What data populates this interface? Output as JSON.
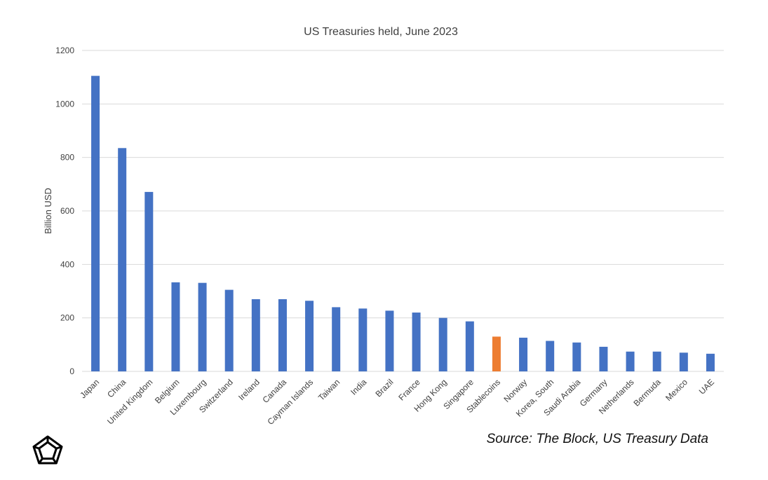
{
  "chart_data": {
    "type": "bar",
    "title": "US Treasuries held, June 2023",
    "xlabel": "",
    "ylabel": "Billion USD",
    "ylim": [
      0,
      1200
    ],
    "yticks": [
      0,
      200,
      400,
      600,
      800,
      1000,
      1200
    ],
    "grid": true,
    "legend": "none",
    "categories": [
      "Japan",
      "China",
      "United Kingdom",
      "Belgium",
      "Luxembourg",
      "Switzerland",
      "Ireland",
      "Canada",
      "Cayman Islands",
      "Taiwan",
      "India",
      "Brazil",
      "France",
      "Hong Kong",
      "Singapore",
      "Stablecoins",
      "Norway",
      "Korea, South",
      "Saudi Arabia",
      "Germany",
      "Netherlands",
      "Bermuda",
      "Mexico",
      "UAE"
    ],
    "values": [
      1105,
      835,
      671,
      333,
      331,
      305,
      270,
      270,
      264,
      240,
      235,
      227,
      220,
      200,
      187,
      130,
      126,
      114,
      108,
      92,
      74,
      74,
      70,
      66
    ],
    "colors": {
      "default": "#4472c4",
      "highlight": "#ed7d31",
      "highlight_category": "Stablecoins",
      "grid": "#d9d9d9",
      "text": "#404040"
    },
    "source": "Source: The Block, US Treasury Data"
  },
  "logo": {
    "icon": "pentagon-logo-icon",
    "color": "#000000"
  }
}
